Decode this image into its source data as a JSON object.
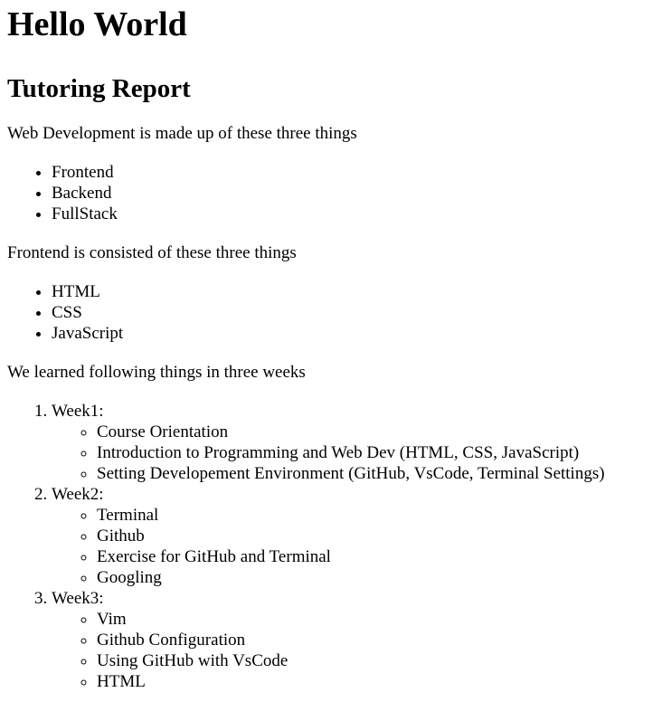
{
  "title": "Hello World",
  "subtitle": "Tutoring Report",
  "web_dev": {
    "intro": "Web Development is made up of these three things",
    "items": [
      "Frontend",
      "Backend",
      "FullStack"
    ]
  },
  "frontend": {
    "intro": "Frontend is consisted of these three things",
    "items": [
      "HTML",
      "CSS",
      "JavaScript"
    ]
  },
  "weeks": {
    "intro": "We learned following things in three weeks",
    "list": [
      {
        "label": "Week1:",
        "topics": [
          "Course Orientation",
          "Introduction to Programming and Web Dev (HTML, CSS, JavaScript)",
          "Setting Developement Environment (GitHub, VsCode, Terminal Settings)"
        ]
      },
      {
        "label": "Week2:",
        "topics": [
          "Terminal",
          "Github",
          "Exercise for GitHub and Terminal",
          "Googling"
        ]
      },
      {
        "label": "Week3:",
        "topics": [
          "Vim",
          "Github Configuration",
          "Using GitHub with VsCode",
          "HTML"
        ]
      }
    ]
  }
}
